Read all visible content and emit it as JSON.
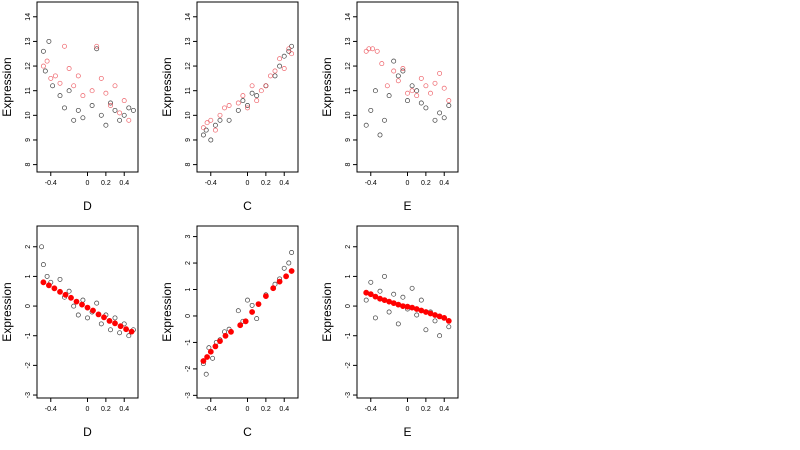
{
  "colors": {
    "point_black": "#000000",
    "point_red": "#e8303a",
    "fit_red": "#ff0000",
    "frame": "#000000"
  },
  "chart_data": [
    {
      "type": "scatter",
      "title": "",
      "xlabel": "D",
      "ylabel": "Expression",
      "xlim": [
        -0.55,
        0.55
      ],
      "ylim": [
        7.7,
        14.6
      ],
      "xticks": [
        -0.4,
        0.0,
        0.2,
        0.4
      ],
      "yticks": [
        8,
        9,
        10,
        11,
        12,
        13,
        14
      ],
      "grid": false,
      "legend": "none",
      "series": [
        {
          "color": "black",
          "x": [
            -0.48,
            -0.46,
            -0.42,
            -0.38,
            -0.3,
            -0.25,
            -0.2,
            -0.15,
            -0.1,
            -0.05,
            0.05,
            0.1,
            0.15,
            0.2,
            0.25,
            0.3,
            0.35,
            0.4,
            0.45,
            0.5
          ],
          "y": [
            12.6,
            11.8,
            13.0,
            11.2,
            10.8,
            10.3,
            11.0,
            9.8,
            10.2,
            9.9,
            10.4,
            12.7,
            10.0,
            9.6,
            10.5,
            10.2,
            9.8,
            10.0,
            10.3,
            10.2
          ]
        },
        {
          "color": "red",
          "x": [
            -0.48,
            -0.44,
            -0.4,
            -0.35,
            -0.3,
            -0.25,
            -0.2,
            -0.15,
            -0.1,
            -0.05,
            0.05,
            0.1,
            0.15,
            0.2,
            0.25,
            0.3,
            0.35,
            0.4,
            0.45
          ],
          "y": [
            12.0,
            12.2,
            11.5,
            11.6,
            11.3,
            12.8,
            11.9,
            11.2,
            11.6,
            10.8,
            11.0,
            12.8,
            11.5,
            10.9,
            10.4,
            11.2,
            10.1,
            10.6,
            9.8
          ]
        }
      ]
    },
    {
      "type": "scatter",
      "title": "",
      "xlabel": "C",
      "ylabel": "Expression",
      "xlim": [
        -0.55,
        0.55
      ],
      "ylim": [
        7.7,
        14.6
      ],
      "xticks": [
        -0.4,
        0.0,
        0.2,
        0.4
      ],
      "yticks": [
        8,
        9,
        10,
        11,
        12,
        13,
        14
      ],
      "grid": false,
      "legend": "none",
      "series": [
        {
          "color": "black",
          "x": [
            -0.48,
            -0.45,
            -0.4,
            -0.35,
            -0.3,
            -0.2,
            -0.1,
            -0.05,
            0.0,
            0.05,
            0.1,
            0.2,
            0.3,
            0.35,
            0.4,
            0.45,
            0.48
          ],
          "y": [
            9.2,
            9.4,
            9.0,
            9.6,
            9.8,
            9.8,
            10.2,
            10.6,
            10.4,
            10.9,
            10.8,
            11.2,
            11.6,
            12.0,
            12.4,
            12.6,
            12.8
          ]
        },
        {
          "color": "red",
          "x": [
            -0.48,
            -0.44,
            -0.4,
            -0.35,
            -0.3,
            -0.25,
            -0.2,
            -0.1,
            -0.05,
            0.0,
            0.05,
            0.1,
            0.15,
            0.2,
            0.25,
            0.3,
            0.35,
            0.4,
            0.45,
            0.48
          ],
          "y": [
            9.5,
            9.7,
            9.8,
            9.4,
            10.0,
            10.3,
            10.4,
            10.5,
            10.8,
            10.3,
            11.2,
            10.6,
            11.0,
            11.2,
            11.6,
            11.8,
            12.3,
            11.9,
            12.7,
            12.5
          ]
        }
      ]
    },
    {
      "type": "scatter",
      "title": "",
      "xlabel": "E",
      "ylabel": "Expression",
      "xlim": [
        -0.55,
        0.55
      ],
      "ylim": [
        7.7,
        14.6
      ],
      "xticks": [
        -0.4,
        0.0,
        0.2,
        0.4
      ],
      "yticks": [
        8,
        9,
        10,
        11,
        12,
        13,
        14
      ],
      "grid": false,
      "legend": "none",
      "series": [
        {
          "color": "black",
          "x": [
            -0.45,
            -0.4,
            -0.35,
            -0.3,
            -0.25,
            -0.2,
            -0.15,
            -0.1,
            -0.05,
            0.0,
            0.05,
            0.1,
            0.15,
            0.2,
            0.3,
            0.35,
            0.4,
            0.45
          ],
          "y": [
            9.6,
            10.2,
            11.0,
            9.2,
            9.8,
            10.8,
            12.2,
            11.6,
            11.8,
            10.6,
            11.2,
            11.0,
            10.5,
            10.3,
            9.8,
            10.1,
            9.9,
            10.4
          ]
        },
        {
          "color": "red",
          "x": [
            -0.45,
            -0.42,
            -0.38,
            -0.33,
            -0.28,
            -0.22,
            -0.15,
            -0.1,
            -0.05,
            0.0,
            0.05,
            0.1,
            0.15,
            0.2,
            0.25,
            0.3,
            0.35,
            0.4,
            0.45
          ],
          "y": [
            12.6,
            12.7,
            12.7,
            12.6,
            12.1,
            11.2,
            11.8,
            11.4,
            11.9,
            10.9,
            11.0,
            10.8,
            11.5,
            11.2,
            10.9,
            11.3,
            11.7,
            11.1,
            10.6
          ]
        }
      ]
    },
    {
      "type": "scatter",
      "title": "",
      "xlabel": "D",
      "ylabel": "Expression",
      "xlim": [
        -0.55,
        0.55
      ],
      "ylim": [
        -3.1,
        2.7
      ],
      "xticks": [
        -0.4,
        0.0,
        0.2,
        0.4
      ],
      "yticks": [
        -3,
        -2,
        -1,
        0,
        1,
        2
      ],
      "grid": false,
      "legend": "none",
      "series": [
        {
          "color": "black",
          "x": [
            -0.5,
            -0.48,
            -0.44,
            -0.4,
            -0.36,
            -0.3,
            -0.25,
            -0.2,
            -0.15,
            -0.1,
            -0.05,
            0.0,
            0.05,
            0.1,
            0.15,
            0.2,
            0.25,
            0.3,
            0.35,
            0.4,
            0.45,
            0.5
          ],
          "y": [
            2.0,
            1.4,
            1.0,
            0.8,
            0.6,
            0.9,
            0.3,
            0.5,
            0.0,
            -0.3,
            0.2,
            -0.4,
            -0.2,
            0.1,
            -0.6,
            -0.3,
            -0.8,
            -0.4,
            -0.9,
            -0.6,
            -1.0,
            -0.8
          ]
        },
        {
          "color": "red-fit",
          "x": [
            -0.48,
            -0.42,
            -0.36,
            -0.3,
            -0.24,
            -0.18,
            -0.12,
            -0.06,
            0.0,
            0.06,
            0.12,
            0.18,
            0.24,
            0.3,
            0.36,
            0.42,
            0.48
          ],
          "y": [
            0.8,
            0.7,
            0.6,
            0.48,
            0.38,
            0.28,
            0.15,
            0.05,
            -0.05,
            -0.15,
            -0.28,
            -0.38,
            -0.5,
            -0.58,
            -0.68,
            -0.78,
            -0.86
          ]
        }
      ]
    },
    {
      "type": "scatter",
      "title": "",
      "xlabel": "C",
      "ylabel": "Expression",
      "xlim": [
        -0.55,
        0.55
      ],
      "ylim": [
        -3.1,
        3.4
      ],
      "xticks": [
        -0.4,
        0.0,
        0.2,
        0.4
      ],
      "yticks": [
        -3,
        -2,
        -1,
        0,
        1,
        2,
        3
      ],
      "grid": false,
      "legend": "none",
      "series": [
        {
          "color": "black",
          "x": [
            -0.48,
            -0.45,
            -0.42,
            -0.38,
            -0.34,
            -0.3,
            -0.25,
            -0.2,
            -0.1,
            -0.05,
            0.0,
            0.05,
            0.1,
            0.2,
            0.3,
            0.35,
            0.4,
            0.45,
            0.48
          ],
          "y": [
            -1.8,
            -2.2,
            -1.2,
            -1.6,
            -1.0,
            -0.9,
            -0.6,
            -0.5,
            0.2,
            -0.2,
            0.6,
            0.4,
            -0.1,
            0.8,
            1.2,
            1.4,
            1.8,
            2.0,
            2.4
          ]
        },
        {
          "color": "red-fit",
          "x": [
            -0.48,
            -0.44,
            -0.4,
            -0.35,
            -0.3,
            -0.24,
            -0.18,
            -0.08,
            -0.02,
            0.05,
            0.12,
            0.2,
            0.28,
            0.35,
            0.42,
            0.48
          ],
          "y": [
            -1.7,
            -1.55,
            -1.35,
            -1.15,
            -0.95,
            -0.75,
            -0.6,
            -0.35,
            -0.2,
            0.15,
            0.45,
            0.75,
            1.05,
            1.3,
            1.5,
            1.7
          ]
        }
      ]
    },
    {
      "type": "scatter",
      "title": "",
      "xlabel": "E",
      "ylabel": "Expression",
      "xlim": [
        -0.55,
        0.55
      ],
      "ylim": [
        -3.1,
        2.7
      ],
      "xticks": [
        -0.4,
        0.0,
        0.2,
        0.4
      ],
      "yticks": [
        -3,
        -2,
        -1,
        0,
        1,
        2
      ],
      "grid": false,
      "legend": "none",
      "series": [
        {
          "color": "black",
          "x": [
            -0.45,
            -0.4,
            -0.35,
            -0.3,
            -0.25,
            -0.2,
            -0.15,
            -0.1,
            -0.05,
            0.0,
            0.05,
            0.1,
            0.15,
            0.2,
            0.25,
            0.3,
            0.35,
            0.4,
            0.45
          ],
          "y": [
            0.2,
            0.8,
            -0.4,
            0.5,
            1.0,
            -0.2,
            0.4,
            -0.6,
            0.3,
            -0.1,
            0.6,
            -0.3,
            0.2,
            -0.8,
            -0.2,
            -0.5,
            -1.0,
            -0.4,
            -0.7
          ]
        },
        {
          "color": "red-fit",
          "x": [
            -0.45,
            -0.4,
            -0.35,
            -0.3,
            -0.25,
            -0.2,
            -0.15,
            -0.1,
            -0.05,
            0.0,
            0.05,
            0.1,
            0.15,
            0.2,
            0.25,
            0.3,
            0.35,
            0.4,
            0.45
          ],
          "y": [
            0.45,
            0.4,
            0.32,
            0.25,
            0.2,
            0.15,
            0.1,
            0.05,
            0.0,
            -0.02,
            -0.05,
            -0.1,
            -0.15,
            -0.2,
            -0.25,
            -0.3,
            -0.35,
            -0.4,
            -0.5
          ]
        }
      ]
    }
  ]
}
